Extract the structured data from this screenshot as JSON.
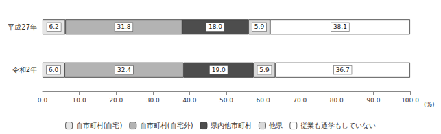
{
  "chart_data": {
    "type": "bar",
    "orientation": "horizontal",
    "stacked": true,
    "data_labels": true,
    "legend": "bottom",
    "grid": false,
    "xlabel": "(%)",
    "categories": [
      "平成27年",
      "令和2年"
    ],
    "xlim": [
      0,
      100
    ],
    "xticks": [
      {
        "value": 0,
        "label": "0.0"
      },
      {
        "value": 10,
        "label": "10.0"
      },
      {
        "value": 20,
        "label": "20.0"
      },
      {
        "value": 30,
        "label": "30.0"
      },
      {
        "value": 40,
        "label": "40.0"
      },
      {
        "value": 50,
        "label": "50.0"
      },
      {
        "value": 60,
        "label": "60.0"
      },
      {
        "value": 70,
        "label": "70.0"
      },
      {
        "value": 80,
        "label": "80.0"
      },
      {
        "value": 90,
        "label": "90.0"
      },
      {
        "value": 100,
        "label": "100.0"
      }
    ],
    "series": [
      {
        "name": "自市町村(自宅)",
        "color": "#e6e6e6",
        "values": [
          6.2,
          6.0
        ],
        "value_labels": [
          "6.2",
          "6.0"
        ]
      },
      {
        "name": "自市町村(自宅外)",
        "color": "#b3b3b3",
        "values": [
          31.8,
          32.4
        ],
        "value_labels": [
          "31.8",
          "32.4"
        ]
      },
      {
        "name": "県内他市町村",
        "color": "#4d4d4d",
        "values": [
          18.0,
          19.0
        ],
        "value_labels": [
          "18.0",
          "19.0"
        ]
      },
      {
        "name": "他県",
        "color": "#d9d9d9",
        "values": [
          5.9,
          5.9
        ],
        "value_labels": [
          "5.9",
          "5.9"
        ]
      },
      {
        "name": "従業も通学もしていない",
        "color": "#ffffff",
        "values": [
          38.1,
          36.7
        ],
        "value_labels": [
          "38.1",
          "36.7"
        ]
      }
    ]
  }
}
